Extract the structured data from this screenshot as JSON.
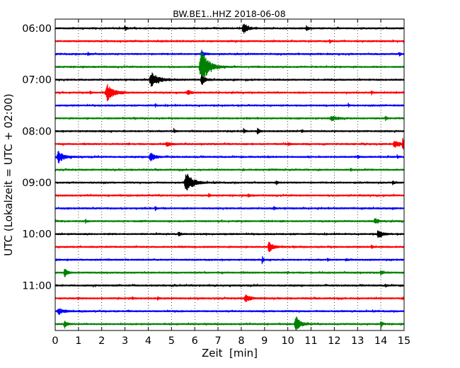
{
  "chart_data": {
    "type": "line",
    "title": "BW.BE1..HHZ 2018-06-08",
    "xlabel": "Zeit  [min]",
    "ylabel": "UTC (Lokalzeit = UTC + 02:00)",
    "xlim": [
      0,
      15
    ],
    "x_ticks": [
      "0",
      "1",
      "2",
      "3",
      "4",
      "5",
      "6",
      "7",
      "8",
      "9",
      "10",
      "11",
      "12",
      "13",
      "14",
      "15"
    ],
    "y_ticks": [
      {
        "label": "06:00",
        "trace": 0
      },
      {
        "label": "07:00",
        "trace": 4
      },
      {
        "label": "08:00",
        "trace": 8
      },
      {
        "label": "09:00",
        "trace": 12
      },
      {
        "label": "10:00",
        "trace": 16
      },
      {
        "label": "11:00",
        "trace": 20
      }
    ],
    "vertical_grid": "dotted, every 1 min",
    "trace_colors": [
      "#000000",
      "#ff0000",
      "#0000ff",
      "#008000"
    ],
    "traces_per_hour": 4,
    "minutes_per_trace": 15,
    "traces": [
      {
        "events": [
          {
            "t": 3.0,
            "a": 0.5,
            "w": 0.05
          },
          {
            "t": 8.1,
            "a": 1.0,
            "w": 0.25
          },
          {
            "t": 10.8,
            "a": 0.4,
            "w": 0.1
          }
        ]
      },
      {
        "events": [
          {
            "t": 11.8,
            "a": 0.3,
            "w": 0.05
          }
        ]
      },
      {
        "events": [
          {
            "t": 1.4,
            "a": 0.3,
            "w": 0.05
          },
          {
            "t": 6.3,
            "a": 0.6,
            "w": 0.15
          },
          {
            "t": 14.8,
            "a": 0.3,
            "w": 0.05
          }
        ]
      },
      {
        "events": [
          {
            "t": 6.3,
            "a": 3.0,
            "w": 0.45
          }
        ]
      },
      {
        "events": [
          {
            "t": 4.15,
            "a": 1.2,
            "w": 0.45
          },
          {
            "t": 6.3,
            "a": 0.8,
            "w": 0.2
          }
        ]
      },
      {
        "events": [
          {
            "t": 1.5,
            "a": 0.3,
            "w": 0.05
          },
          {
            "t": 2.25,
            "a": 1.3,
            "w": 0.45
          },
          {
            "t": 5.7,
            "a": 0.4,
            "w": 0.2
          },
          {
            "t": 13.6,
            "a": 0.3,
            "w": 0.05
          }
        ]
      },
      {
        "events": [
          {
            "t": 4.3,
            "a": 0.3,
            "w": 0.05
          },
          {
            "t": 12.6,
            "a": 0.3,
            "w": 0.05
          }
        ]
      },
      {
        "events": [
          {
            "t": 11.9,
            "a": 0.35,
            "w": 0.4
          },
          {
            "t": 14.2,
            "a": 0.4,
            "w": 0.05
          }
        ]
      },
      {
        "events": [
          {
            "t": 5.1,
            "a": 0.4,
            "w": 0.05
          },
          {
            "t": 8.1,
            "a": 0.5,
            "w": 0.05
          },
          {
            "t": 8.7,
            "a": 0.5,
            "w": 0.1
          },
          {
            "t": 10.6,
            "a": 0.3,
            "w": 0.05
          }
        ]
      },
      {
        "events": [
          {
            "t": 4.8,
            "a": 0.3,
            "w": 0.3
          },
          {
            "t": 10.0,
            "a": 0.3,
            "w": 0.1
          },
          {
            "t": 14.6,
            "a": 0.6,
            "w": 0.3
          },
          {
            "t": 14.95,
            "a": 1.0,
            "w": 0.15
          }
        ]
      },
      {
        "events": [
          {
            "t": 0.15,
            "a": 1.0,
            "w": 0.35
          },
          {
            "t": 4.1,
            "a": 0.7,
            "w": 0.3
          },
          {
            "t": 13.0,
            "a": 0.3,
            "w": 0.05
          },
          {
            "t": 14.7,
            "a": 0.3,
            "w": 0.05
          }
        ]
      },
      {
        "events": [
          {
            "t": 12.7,
            "a": 0.3,
            "w": 0.05
          }
        ]
      },
      {
        "events": [
          {
            "t": 5.65,
            "a": 1.6,
            "w": 0.45
          },
          {
            "t": 9.5,
            "a": 0.3,
            "w": 0.1
          },
          {
            "t": 14.5,
            "a": 0.35,
            "w": 0.05
          }
        ]
      },
      {
        "events": [
          {
            "t": 6.6,
            "a": 0.3,
            "w": 0.05
          },
          {
            "t": 8.3,
            "a": 0.25,
            "w": 0.1
          }
        ]
      },
      {
        "events": [
          {
            "t": 4.3,
            "a": 0.4,
            "w": 0.05
          },
          {
            "t": 9.4,
            "a": 0.3,
            "w": 0.05
          }
        ]
      },
      {
        "events": [
          {
            "t": 1.3,
            "a": 0.3,
            "w": 0.05
          },
          {
            "t": 13.75,
            "a": 0.4,
            "w": 0.25
          }
        ]
      },
      {
        "events": [
          {
            "t": 5.3,
            "a": 0.4,
            "w": 0.1
          },
          {
            "t": 13.9,
            "a": 0.7,
            "w": 0.25
          }
        ]
      },
      {
        "events": [
          {
            "t": 9.2,
            "a": 0.9,
            "w": 0.25
          },
          {
            "t": 13.6,
            "a": 0.3,
            "w": 0.05
          }
        ]
      },
      {
        "events": [
          {
            "t": 8.9,
            "a": 0.6,
            "w": 0.05
          },
          {
            "t": 11.7,
            "a": 0.35,
            "w": 0.05
          },
          {
            "t": 12.5,
            "a": 0.3,
            "w": 0.05
          }
        ]
      },
      {
        "events": [
          {
            "t": 0.4,
            "a": 0.8,
            "w": 0.15
          },
          {
            "t": 14.0,
            "a": 0.4,
            "w": 0.1
          }
        ]
      },
      {
        "events": [
          {
            "t": 14.2,
            "a": 0.3,
            "w": 0.05
          }
        ]
      },
      {
        "events": [
          {
            "t": 3.3,
            "a": 0.3,
            "w": 0.05
          },
          {
            "t": 4.4,
            "a": 0.3,
            "w": 0.05
          },
          {
            "t": 8.2,
            "a": 0.6,
            "w": 0.3
          },
          {
            "t": 15.0,
            "a": 0.4,
            "w": 0.05
          }
        ]
      },
      {
        "events": [
          {
            "t": 0.15,
            "a": 0.5,
            "w": 0.35
          }
        ]
      },
      {
        "events": [
          {
            "t": 0.4,
            "a": 0.6,
            "w": 0.15
          },
          {
            "t": 10.35,
            "a": 1.3,
            "w": 0.3
          },
          {
            "t": 14.0,
            "a": 0.5,
            "w": 0.1
          }
        ]
      }
    ]
  }
}
